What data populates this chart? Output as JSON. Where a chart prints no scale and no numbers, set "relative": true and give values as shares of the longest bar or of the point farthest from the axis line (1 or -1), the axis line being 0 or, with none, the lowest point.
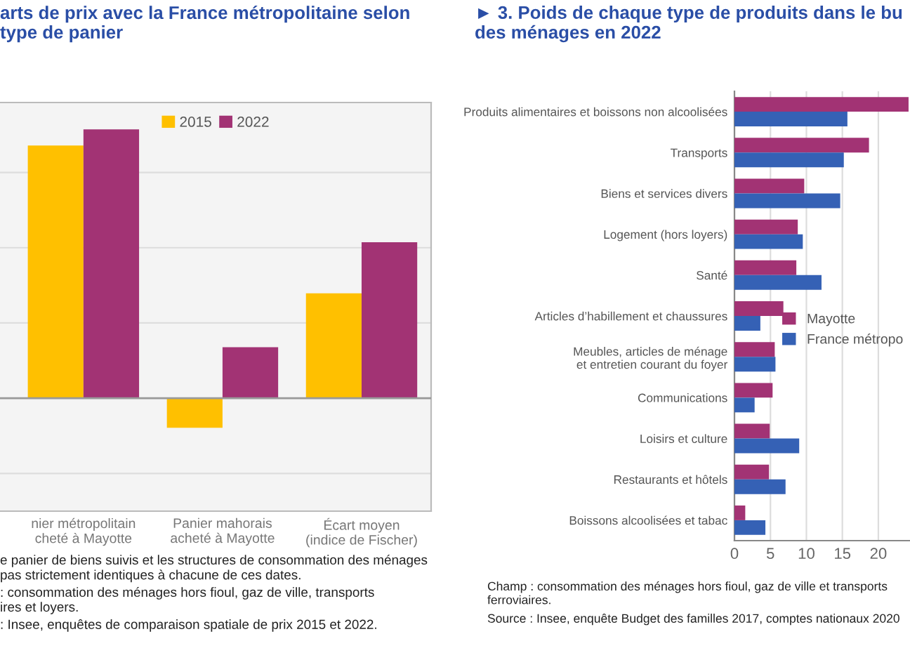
{
  "chart_data": [
    {
      "type": "bar",
      "title": "arts de prix avec la France métropolitaine selon\ntype de panier",
      "relative": true,
      "grid": "y",
      "legend": "top",
      "categories": [
        "nier métropolitain\ncheté à Mayotte",
        "Panier mahorais\nacheté à Mayotte",
        "Écart moyen\n(indice de Fischer)"
      ],
      "series": [
        {
          "name": "2015",
          "color": "#ffc000",
          "values": [
            0.94,
            -0.11,
            0.39
          ]
        },
        {
          "name": "2022",
          "color": "#a23374",
          "values": [
            1,
            0.19,
            0.58
          ]
        }
      ],
      "annotations": [
        "e panier de biens suivis et les structures de consommation des ménages\npas strictement identiques à chacune de ces dates.",
        ": consommation des ménages hors fioul, gaz de ville, transports\nires et loyers.",
        ": Insee, enquêtes de comparaison spatiale de prix 2015 et 2022."
      ]
    },
    {
      "type": "bar",
      "orientation": "horizontal",
      "title": "► 3. Poids de chaque type de produits dans le bu\ndes ménages en 2022",
      "grid": "x",
      "legend": "right",
      "categories": [
        "Produits alimentaires et boissons non alcoolisées",
        "Transports",
        "Biens et services divers",
        "Logement (hors loyers)",
        "Santé",
        "Articles d’habillement et chaussures",
        "Meubles, articles de ménage\net entretien courant du foyer",
        "Communications",
        "Loisirs et culture",
        "Restaurants et hôtels",
        "Boissons alcoolisées et tabac"
      ],
      "xlim": [
        0,
        24.4
      ],
      "xticks": [
        0,
        5,
        10,
        15,
        20
      ],
      "series": [
        {
          "name": "Mayotte",
          "color": "#a23374",
          "values": [
            24.2,
            18.7,
            9.7,
            8.8,
            8.6,
            6.8,
            5.6,
            5.3,
            4.9,
            4.8,
            1.5
          ]
        },
        {
          "name": "France métropo",
          "color": "#3561b5",
          "values": [
            15.7,
            15.2,
            14.7,
            9.5,
            12.1,
            3.6,
            5.7,
            2.8,
            9.0,
            7.1,
            4.3
          ]
        }
      ],
      "annotations": [
        "Champ : consommation des ménages hors fioul, gaz de ville et transports\nferroviaires.",
        "Source : Insee, enquête Budget des familles 2017, comptes nationaux 2020"
      ]
    }
  ]
}
